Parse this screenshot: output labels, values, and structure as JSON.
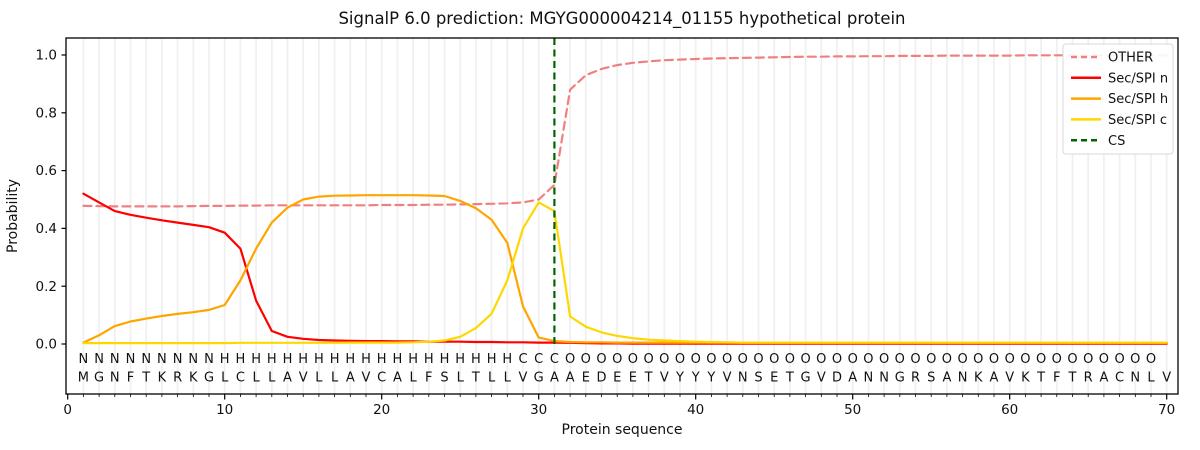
{
  "chart_data": {
    "type": "line",
    "title": "SignalP 6.0 prediction: MGYG000004214_01155 hypothetical protein",
    "xlabel": "Protein sequence",
    "ylabel": "Probability",
    "x_ticks": [
      0,
      10,
      20,
      30,
      40,
      50,
      60,
      70
    ],
    "y_ticks": [
      "0.0",
      "0.2",
      "0.4",
      "0.6",
      "0.8",
      "1.0"
    ],
    "xlim": [
      0,
      70.7
    ],
    "ylim": [
      -0.18,
      1.06
    ],
    "grid": "vertical per residue, light gray",
    "legend_position": "upper right",
    "sequence": "MGNFTKRKGLCLLAVLLAVCALFSLTLLVGAAEDEETVYYYVNSETGVDANNGRSANKAVKTFTRACNLV",
    "region_annotation": "NNNNNNNNNHHHHHHHHHHHHHHHHHHHCCCOOOOOOOOOOOOOOOOOOOOOOOOOOOOOOOOOOOOOO",
    "annotation_colors": {
      "N": "#ff0000",
      "H": "#ffa500",
      "C": "#ffd700",
      "O": "#8c8c8c"
    },
    "sequence_color": "#1a1a1a",
    "cs_position": 31,
    "x": [
      1,
      2,
      3,
      4,
      5,
      6,
      7,
      8,
      9,
      10,
      11,
      12,
      13,
      14,
      15,
      16,
      17,
      18,
      19,
      20,
      21,
      22,
      23,
      24,
      25,
      26,
      27,
      28,
      29,
      30,
      31,
      32,
      33,
      34,
      35,
      36,
      37,
      38,
      39,
      40,
      41,
      42,
      43,
      44,
      45,
      46,
      47,
      48,
      49,
      50,
      51,
      52,
      53,
      54,
      55,
      56,
      57,
      58,
      59,
      60,
      61,
      62,
      63,
      64,
      65,
      66,
      67,
      68,
      69,
      70
    ],
    "series": [
      {
        "name": "OTHER",
        "color": "#f08080",
        "dash": true,
        "values": [
          0.478,
          0.477,
          0.476,
          0.476,
          0.476,
          0.476,
          0.476,
          0.477,
          0.478,
          0.478,
          0.479,
          0.479,
          0.48,
          0.48,
          0.48,
          0.48,
          0.48,
          0.48,
          0.48,
          0.481,
          0.481,
          0.481,
          0.482,
          0.482,
          0.483,
          0.484,
          0.485,
          0.487,
          0.49,
          0.5,
          0.55,
          0.88,
          0.93,
          0.952,
          0.965,
          0.973,
          0.978,
          0.982,
          0.984,
          0.986,
          0.988,
          0.989,
          0.99,
          0.991,
          0.992,
          0.993,
          0.994,
          0.994,
          0.995,
          0.995,
          0.996,
          0.996,
          0.997,
          0.997,
          0.997,
          0.998,
          0.998,
          0.998,
          0.998,
          0.998,
          0.999,
          0.999,
          0.999,
          0.999,
          0.999,
          0.999,
          0.999,
          0.999,
          0.999,
          0.999
        ]
      },
      {
        "name": "Sec/SPI n",
        "color": "#ff0000",
        "dash": false,
        "values": [
          0.52,
          0.49,
          0.46,
          0.447,
          0.437,
          0.428,
          0.42,
          0.412,
          0.404,
          0.385,
          0.33,
          0.15,
          0.045,
          0.025,
          0.018,
          0.014,
          0.012,
          0.011,
          0.01,
          0.01,
          0.009,
          0.009,
          0.008,
          0.008,
          0.008,
          0.007,
          0.007,
          0.006,
          0.006,
          0.005,
          0.005,
          0.004,
          0.003,
          0.002,
          0.002,
          0.001,
          0.001,
          0.001,
          0.001,
          0.001,
          0.001,
          0.001,
          0.001,
          0.001,
          0.001,
          0.001,
          0.001,
          0.001,
          0.001,
          0.001,
          0.001,
          0.001,
          0.001,
          0.001,
          0.001,
          0.001,
          0.001,
          0.001,
          0.001,
          0.001,
          0.001,
          0.001,
          0.001,
          0.001,
          0.001,
          0.001,
          0.001,
          0.001,
          0.001,
          0.001
        ]
      },
      {
        "name": "Sec/SPI h",
        "color": "#ffa500",
        "dash": false,
        "values": [
          0.005,
          0.03,
          0.062,
          0.078,
          0.088,
          0.097,
          0.104,
          0.11,
          0.118,
          0.135,
          0.22,
          0.33,
          0.42,
          0.472,
          0.5,
          0.51,
          0.513,
          0.514,
          0.515,
          0.515,
          0.515,
          0.515,
          0.514,
          0.512,
          0.495,
          0.47,
          0.43,
          0.35,
          0.13,
          0.022,
          0.01,
          0.007,
          0.006,
          0.006,
          0.005,
          0.005,
          0.005,
          0.005,
          0.005,
          0.005,
          0.005,
          0.005,
          0.005,
          0.005,
          0.005,
          0.005,
          0.005,
          0.005,
          0.005,
          0.005,
          0.005,
          0.005,
          0.005,
          0.005,
          0.005,
          0.005,
          0.005,
          0.005,
          0.005,
          0.005,
          0.005,
          0.005,
          0.005,
          0.005,
          0.005,
          0.005,
          0.005,
          0.005,
          0.005,
          0.005
        ]
      },
      {
        "name": "Sec/SPI c",
        "color": "#ffd700",
        "dash": false,
        "values": [
          0.003,
          0.003,
          0.003,
          0.003,
          0.003,
          0.003,
          0.003,
          0.003,
          0.003,
          0.003,
          0.004,
          0.004,
          0.004,
          0.004,
          0.004,
          0.004,
          0.004,
          0.005,
          0.005,
          0.005,
          0.005,
          0.006,
          0.008,
          0.012,
          0.025,
          0.055,
          0.105,
          0.22,
          0.4,
          0.49,
          0.46,
          0.095,
          0.06,
          0.04,
          0.028,
          0.02,
          0.015,
          0.012,
          0.01,
          0.008,
          0.007,
          0.006,
          0.005,
          0.005,
          0.005,
          0.005,
          0.005,
          0.005,
          0.005,
          0.005,
          0.005,
          0.005,
          0.005,
          0.005,
          0.005,
          0.005,
          0.005,
          0.005,
          0.005,
          0.005,
          0.005,
          0.005,
          0.005,
          0.005,
          0.005,
          0.005,
          0.005,
          0.005,
          0.005,
          0.005
        ]
      },
      {
        "name": "CS",
        "color": "#006400",
        "dash": true,
        "type": "vline",
        "x": 31
      }
    ]
  }
}
